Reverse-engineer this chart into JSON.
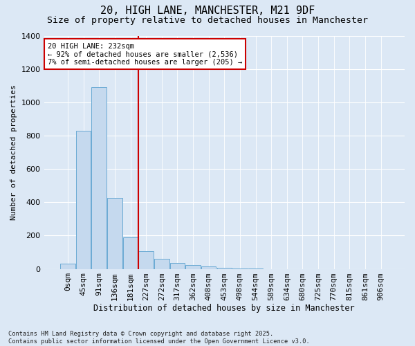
{
  "title1": "20, HIGH LANE, MANCHESTER, M21 9DF",
  "title2": "Size of property relative to detached houses in Manchester",
  "xlabel": "Distribution of detached houses by size in Manchester",
  "ylabel": "Number of detached properties",
  "bar_labels": [
    "0sqm",
    "45sqm",
    "91sqm",
    "136sqm",
    "181sqm",
    "227sqm",
    "272sqm",
    "317sqm",
    "362sqm",
    "408sqm",
    "453sqm",
    "498sqm",
    "544sqm",
    "589sqm",
    "634sqm",
    "680sqm",
    "725sqm",
    "770sqm",
    "815sqm",
    "861sqm",
    "906sqm"
  ],
  "bar_values": [
    30,
    830,
    1090,
    425,
    190,
    105,
    60,
    35,
    25,
    15,
    5,
    2,
    1,
    0,
    0,
    0,
    0,
    0,
    0,
    0,
    0
  ],
  "bar_color": "#c5d9ee",
  "bar_edge_color": "#6aaad4",
  "vline_x_label": "227sqm",
  "vline_color": "#cc0000",
  "annotation_text": "20 HIGH LANE: 232sqm\n← 92% of detached houses are smaller (2,536)\n7% of semi-detached houses are larger (205) →",
  "annotation_box_color": "white",
  "annotation_box_edge": "#cc0000",
  "ylim": [
    0,
    1400
  ],
  "yticks": [
    0,
    200,
    400,
    600,
    800,
    1000,
    1200,
    1400
  ],
  "bg_color": "#dce8f5",
  "plot_bg_color": "#dce8f5",
  "footer": "Contains HM Land Registry data © Crown copyright and database right 2025.\nContains public sector information licensed under the Open Government Licence v3.0.",
  "title1_fontsize": 11,
  "title2_fontsize": 9.5,
  "xlabel_fontsize": 8.5,
  "ylabel_fontsize": 8,
  "tick_fontsize": 8,
  "annotation_fontsize": 7.5
}
